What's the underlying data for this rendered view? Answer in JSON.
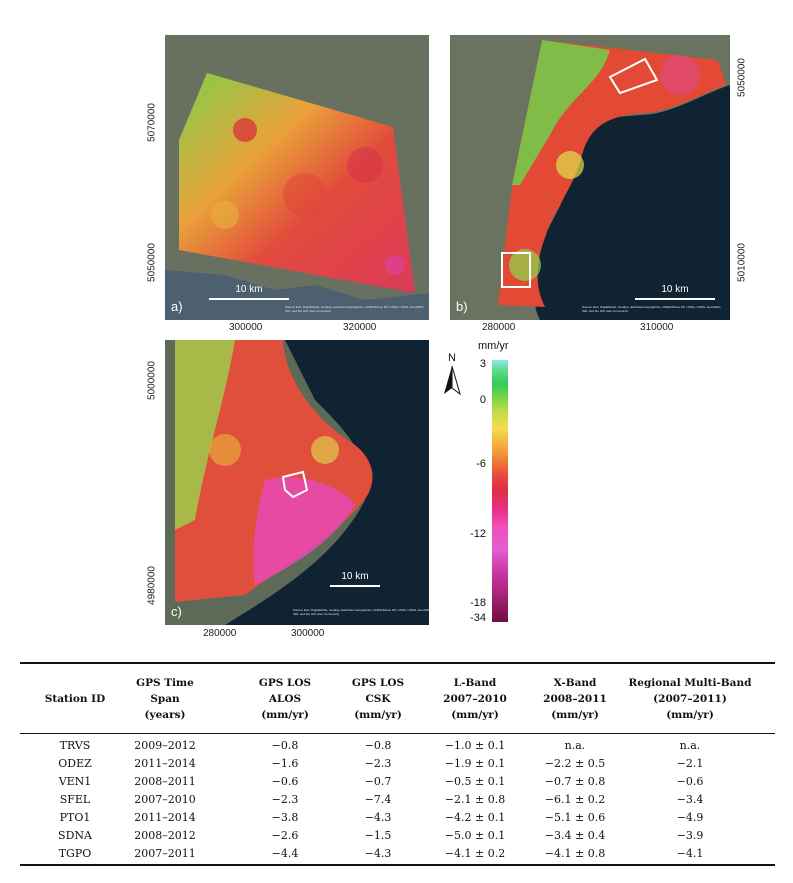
{
  "figure": {
    "panels": [
      {
        "label": "a)",
        "scale": "10 km",
        "x_ticks": [
          "300000",
          "320000"
        ],
        "y_ticks": [
          "5070000",
          "5050000"
        ]
      },
      {
        "label": "b)",
        "scale": "10 km",
        "x_ticks": [
          "280000",
          "310000"
        ],
        "y_ticks": [
          "5050000",
          "5010000"
        ]
      },
      {
        "label": "c)",
        "scale": "10 km",
        "x_ticks": [
          "280000",
          "300000"
        ],
        "y_ticks": [
          "5000000",
          "4980000"
        ]
      }
    ],
    "credit": "Source: Esri, DigitalGlobe, GeoEye, Earthstar Geographics, CNES/Airbus DS, USDA, USGS, AeroGRID, IGN, and the GIS User Community",
    "north_label": "N",
    "colorbar": {
      "unit": "mm/yr",
      "ticks": [
        "3",
        "0",
        "-6",
        "-12",
        "-18",
        "-34"
      ],
      "colors": [
        "#8fe8ee",
        "#33cc5a",
        "#f2de4a",
        "#e8493b",
        "#ef4fbe",
        "#6e0f40"
      ]
    }
  },
  "table": {
    "headers": [
      [
        "Station ID"
      ],
      [
        "GPS Time",
        "Span",
        "(years)"
      ],
      [
        "GPS LOS",
        "ALOS",
        "(mm/yr)"
      ],
      [
        "GPS LOS",
        "CSK",
        "(mm/yr)"
      ],
      [
        "L-Band",
        "2007–2010",
        "(mm/yr)"
      ],
      [
        "X-Band",
        "2008–2011",
        "(mm/yr)"
      ],
      [
        "Regional Multi-Band",
        "(2007–2011)",
        "(mm/yr)"
      ]
    ],
    "rows": [
      [
        "TRVS",
        "2009–2012",
        "−0.8",
        "−0.8",
        "−1.0 ± 0.1",
        "n.a.",
        "n.a."
      ],
      [
        "ODEZ",
        "2011–2014",
        "−1.6",
        "−2.3",
        "−1.9 ± 0.1",
        "−2.2 ± 0.5",
        "−2.1"
      ],
      [
        "VEN1",
        "2008–2011",
        "−0.6",
        "−0.7",
        "−0.5 ± 0.1",
        "−0.7 ± 0.8",
        "−0.6"
      ],
      [
        "SFEL",
        "2007–2010",
        "−2.3",
        "−7.4",
        "−2.1 ± 0.8",
        "−6.1 ± 0.2",
        "−3.4"
      ],
      [
        "PTO1",
        "2011–2014",
        "−3.8",
        "−4.3",
        "−4.2 ± 0.1",
        "−5.1 ± 0.6",
        "−4.9"
      ],
      [
        "SDNA",
        "2008–2012",
        "−2.6",
        "−1.5",
        "−5.0 ± 0.1",
        "−3.4 ± 0.4",
        "−3.9"
      ],
      [
        "TGPO",
        "2007–2011",
        "−4.4",
        "−4.3",
        "−4.1 ± 0.2",
        "−4.1 ± 0.8",
        "−4.1"
      ]
    ]
  }
}
